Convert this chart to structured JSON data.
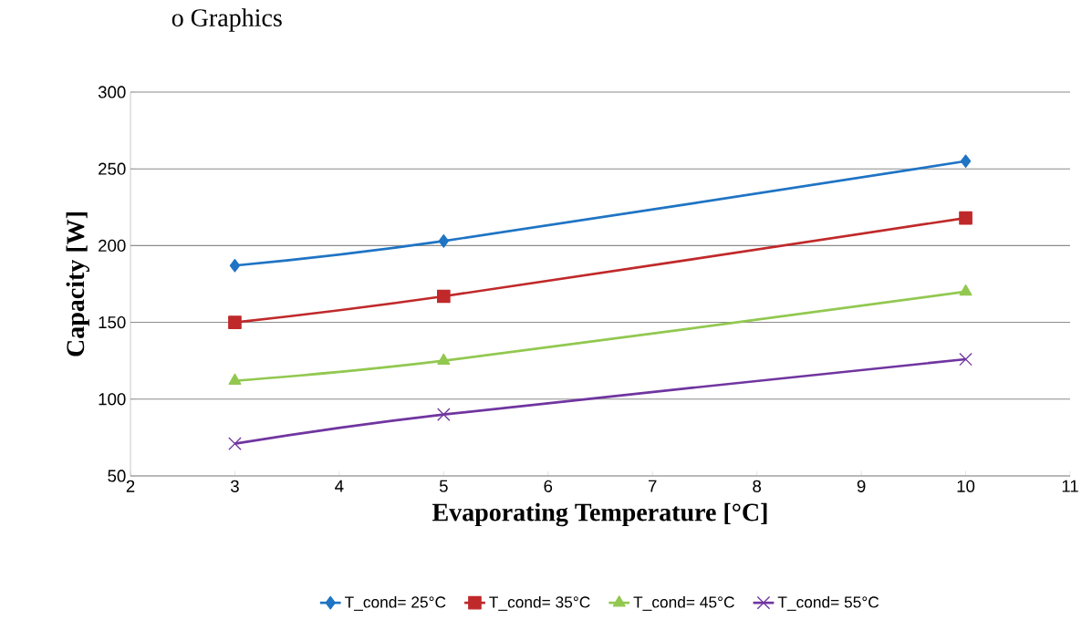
{
  "chart_data": {
    "type": "line",
    "title": "o    Graphics",
    "xlabel": "Evaporating Temperature [°C]",
    "ylabel": "Capacity [W]",
    "x": [
      3,
      5,
      10
    ],
    "series": [
      {
        "name": "T_cond= 25°C",
        "color": "#1f74c4",
        "marker": "diamond",
        "values": [
          187,
          203,
          255
        ]
      },
      {
        "name": "T_cond= 35°C",
        "color": "#c0292a",
        "marker": "square",
        "values": [
          150,
          167,
          218
        ]
      },
      {
        "name": "T_cond= 45°C",
        "color": "#92c850",
        "marker": "triangle",
        "values": [
          112,
          125,
          170
        ]
      },
      {
        "name": "T_cond= 55°C",
        "color": "#7035a0",
        "marker": "cross",
        "values": [
          71,
          90,
          126
        ]
      }
    ],
    "xlim": [
      2,
      11
    ],
    "xticks": [
      2,
      3,
      4,
      5,
      6,
      7,
      8,
      9,
      10,
      11
    ],
    "ylim": [
      50,
      300
    ],
    "yticks": [
      50,
      100,
      150,
      200,
      250,
      300
    ],
    "grid": "y",
    "legend": "bottom",
    "line_style": "solid"
  }
}
